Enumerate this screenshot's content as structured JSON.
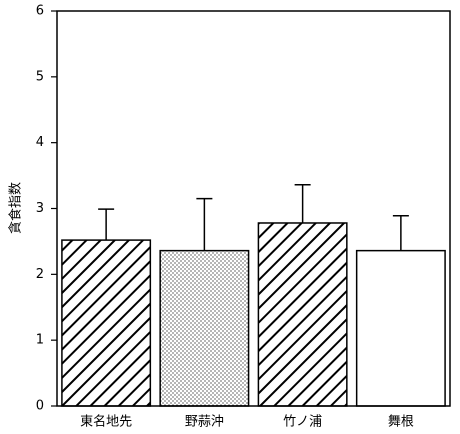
{
  "chart_data": {
    "type": "bar",
    "y_label": "貪食指数",
    "categories": [
      "東名地先",
      "野蒜沖",
      "竹ノ浦",
      "舞根"
    ],
    "values": [
      2.52,
      2.36,
      2.78,
      2.36
    ],
    "errors": [
      0.47,
      0.79,
      0.58,
      0.53
    ],
    "patterns": [
      "hatch",
      "dots",
      "hatch",
      "none"
    ],
    "color": "#000000",
    "ylim": [
      0,
      6
    ],
    "yticks": [
      0,
      1,
      2,
      3,
      4,
      5,
      6
    ]
  }
}
